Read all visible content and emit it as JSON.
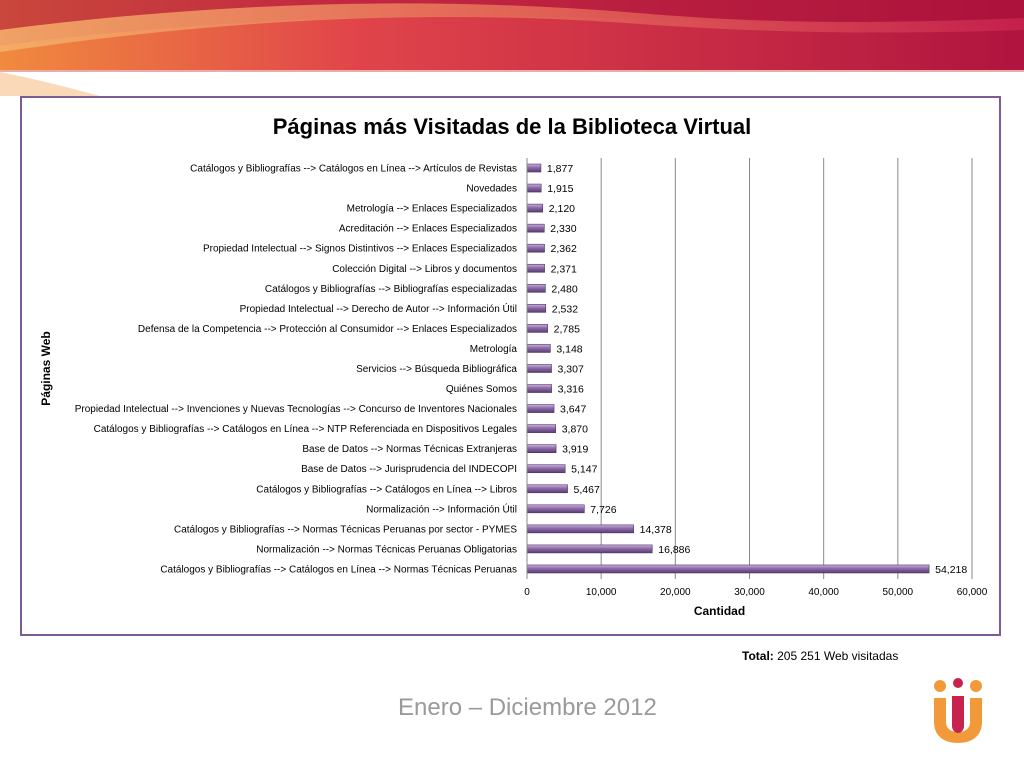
{
  "slide": {
    "total_label": "Total:",
    "total_value": "205 251 Web visitadas",
    "period": "Enero – Diciembre 2012"
  },
  "colors": {
    "bar_fill": "#8c6aa8",
    "bar_dark": "#5a3d73",
    "frame": "#7b5c94",
    "banner_magenta": "#c8234f",
    "banner_orange": "#ef8a4a",
    "logo_orange": "#f29a3a",
    "logo_magenta": "#c8234f"
  },
  "chart_data": {
    "type": "bar",
    "orientation": "horizontal",
    "title": "Páginas más Visitadas de la Biblioteca Virtual",
    "xlabel": "Cantidad",
    "ylabel": "Páginas Web",
    "xlim": [
      0,
      60000
    ],
    "xticks": [
      "0",
      "10,000",
      "20,000",
      "30,000",
      "40,000",
      "50,000",
      "60,000"
    ],
    "grid": "vertical",
    "legend": "none",
    "categories": [
      "Catálogos y Bibliografías --> Catálogos en Línea --> Artículos de Revistas",
      "Novedades",
      "Metrología --> Enlaces Especializados",
      "Acreditación --> Enlaces Especializados",
      "Propiedad Intelectual --> Signos Distintivos --> Enlaces Especializados",
      "Colección Digital --> Libros y documentos",
      "Catálogos y Bibliografías --> Bibliografías especializadas",
      "Propiedad Intelectual --> Derecho de Autor --> Información Útil",
      "Defensa de la Competencia --> Protección al Consumidor --> Enlaces Especializados",
      "Metrología",
      "Servicios --> Búsqueda Bibliográfica",
      "Quiénes Somos",
      "Propiedad Intelectual --> Invenciones y Nuevas Tecnologías --> Concurso de Inventores Nacionales",
      "Catálogos y Bibliografías --> Catálogos en Línea --> NTP Referenciada en Dispositivos Legales",
      "Base de Datos --> Normas Técnicas Extranjeras",
      "Base de Datos --> Jurisprudencia del INDECOPI",
      "Catálogos y Bibliografías --> Catálogos en Línea --> Libros",
      "Normalización --> Información Útil",
      "Catálogos y Bibliografías --> Normas Técnicas Peruanas por sector - PYMES",
      "Normalización --> Normas Técnicas Peruanas Obligatorias",
      "Catálogos y Bibliografías --> Catálogos en Línea --> Normas Técnicas Peruanas"
    ],
    "values": [
      1877,
      1915,
      2120,
      2330,
      2362,
      2371,
      2480,
      2532,
      2785,
      3148,
      3307,
      3316,
      3647,
      3870,
      3919,
      5147,
      5467,
      7726,
      14378,
      16886,
      54218
    ],
    "value_labels": [
      "1,877",
      "1,915",
      "2,120",
      "2,330",
      "2,362",
      "2,371",
      "2,480",
      "2,532",
      "2,785",
      "3,148",
      "3,307",
      "3,316",
      "3,647",
      "3,870",
      "3,919",
      "5,147",
      "5,467",
      "7,726",
      "14,378",
      "16,886",
      "54,218"
    ]
  }
}
